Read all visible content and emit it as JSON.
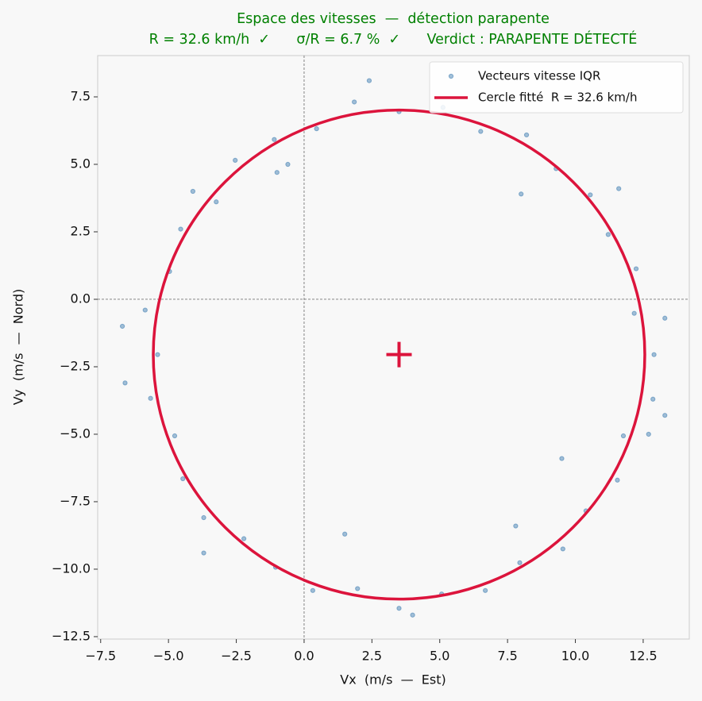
{
  "chart_data": {
    "type": "scatter",
    "title": "Espace des vitesses  —  détection parapente",
    "subtitle": "R = 32.6 km/h  ✓      σ/R = 6.7 %  ✓      Verdict : PARAPENTE DÉTECTÉ",
    "x_label": "Vx  (m/s  —  Est)",
    "y_label": "Vy  (m/s  —  Nord)",
    "xlim": [
      -7.61,
      14.2
    ],
    "ylim": [
      -12.59,
      9.03
    ],
    "xticks": [
      {
        "value": -7.5,
        "label": "−7.5"
      },
      {
        "value": -5,
        "label": "−5.0"
      },
      {
        "value": -2.5,
        "label": "−2.5"
      },
      {
        "value": 0,
        "label": "0.0"
      },
      2.5,
      {
        "value": 5,
        "label": "5.0"
      },
      7.5,
      {
        "value": 10,
        "label": "10.0"
      },
      12.5
    ],
    "yticks": [
      {
        "value": -12.5,
        "label": "−12.5"
      },
      {
        "value": -10,
        "label": "−10.0"
      },
      {
        "value": -7.5,
        "label": "−7.5"
      },
      {
        "value": -5,
        "label": "−5.0"
      },
      {
        "value": -2.5,
        "label": "−2.5"
      },
      {
        "value": 0,
        "label": "0.0"
      },
      2.5,
      {
        "value": 5,
        "label": "5.0"
      },
      7.5
    ],
    "reference_lines": {
      "x": 0,
      "y": 0
    },
    "legend": "upper right",
    "series": [
      {
        "name": "Vecteurs vitesse IQR",
        "color": "#4682b4",
        "x": [
          12.9,
          12.17,
          12.24,
          11.21,
          10.55,
          9.29,
          8.2,
          6.51,
          5.12,
          3.5,
          1.85,
          0.46,
          -1.1,
          -2.54,
          -3.24,
          -4.55,
          -4.96,
          -5.86,
          -5.4,
          -5.66,
          -4.77,
          -4.47,
          -3.7,
          -2.22,
          -1.05,
          0.32,
          1.97,
          3.5,
          5.07,
          6.68,
          7.95,
          9.54,
          10.39,
          11.55,
          11.77,
          12.86,
          -6.7,
          -6.6,
          2.4,
          13.3,
          13.3,
          4.0,
          -4.1,
          -1.0,
          11.6,
          12.7,
          -3.7,
          8.0,
          1.5,
          9.5,
          7.8,
          -0.6
        ],
        "y": [
          -2.05,
          -0.52,
          1.13,
          2.4,
          3.87,
          4.84,
          6.09,
          6.22,
          7.11,
          6.95,
          7.31,
          6.32,
          5.92,
          5.15,
          3.61,
          2.6,
          1.03,
          -0.4,
          -2.05,
          -3.67,
          -5.06,
          -6.65,
          -8.09,
          -8.87,
          -9.93,
          -10.79,
          -10.72,
          -11.45,
          -10.92,
          -10.79,
          -9.76,
          -9.25,
          -7.84,
          -6.7,
          -5.06,
          -3.7,
          -1.0,
          -3.1,
          8.1,
          -4.3,
          -0.7,
          -11.7,
          4.0,
          4.7,
          4.1,
          -5.0,
          -9.4,
          3.9,
          -8.7,
          -5.9,
          -8.4,
          5.0
        ]
      },
      {
        "name": "Cercle fitté  R = 32.6 km/h",
        "color": "#dc143c"
      }
    ],
    "circle": {
      "cx": 3.5,
      "cy": -2.05,
      "r": 9.06
    }
  }
}
